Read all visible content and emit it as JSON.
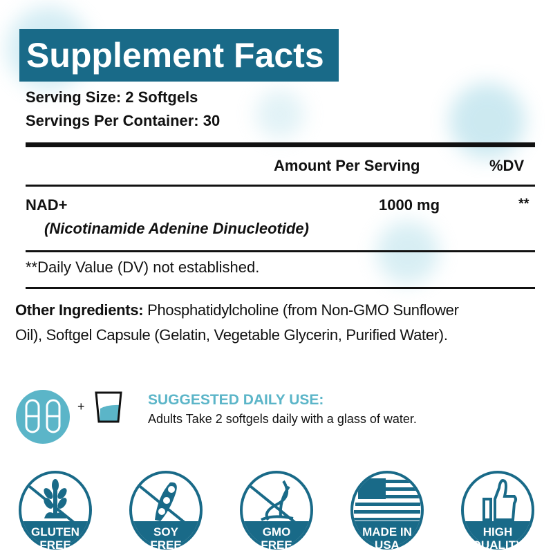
{
  "title": "Supplement Facts",
  "serving_size": "Serving Size: 2 Softgels",
  "servings_per_container": "Servings Per Container: 30",
  "header": {
    "amount": "Amount Per Serving",
    "dv": "%DV"
  },
  "ingredient": {
    "name": "NAD+",
    "full_name": "(Nicotinamide Adenine Dinucleotide)",
    "amount": "1000 mg",
    "dv": "**"
  },
  "footnote": "**Daily Value (DV) not established.",
  "other_ingredients": {
    "label": "Other Ingredients:",
    "line1": " Phosphatidylcholine (from Non-GMO Sunflower",
    "line2": "Oil), Softgel Capsule (Gelatin, Vegetable Glycerin, Purified Water)."
  },
  "usage": {
    "plus": "+",
    "heading": "SUGGESTED DAILY USE:",
    "text": "Adults Take 2 softgels daily with a glass of water."
  },
  "badges": [
    {
      "line1": "GLUTEN",
      "line2": "FREE",
      "icon": "wheat-icon"
    },
    {
      "line1": "SOY",
      "line2": "FREE",
      "icon": "soybean-icon"
    },
    {
      "line1": "GMO",
      "line2": "FREE",
      "icon": "dna-icon"
    },
    {
      "line1": "MADE IN",
      "line2": "USA",
      "icon": "us-flag-icon"
    },
    {
      "line1": "HIGH",
      "line2": "QUALITY",
      "icon": "thumbs-up-icon"
    }
  ],
  "colors": {
    "brand": "#196a88",
    "accent": "#5bb5c8"
  }
}
